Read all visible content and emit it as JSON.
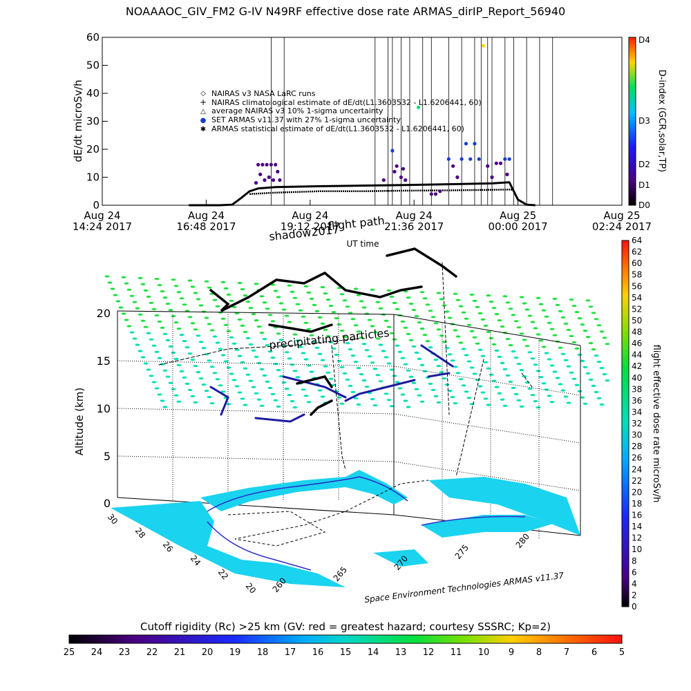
{
  "title": "NOAAAOC_GIV_FM2 G-IV    N49RF   effective dose rate ARMAS_dirIP_Report_56940",
  "colors": {
    "ocean": "#1ad3ef",
    "land_outline": "#2d2dc8",
    "top_accent": "#ff3a00",
    "grid_dot": "#00e070"
  },
  "chart_data": [
    {
      "type": "line",
      "name": "time-series",
      "ylabel": "dE/dt microSv/h",
      "xlabel": "UT time",
      "ylim": [
        0,
        60
      ],
      "yticks": [
        0,
        10,
        20,
        30,
        40,
        50,
        60
      ],
      "xticks": [
        {
          "line1": "Aug 24",
          "line2": "14:24 2017"
        },
        {
          "line1": "Aug 24",
          "line2": "16:48 2017"
        },
        {
          "line1": "Aug 24",
          "line2": "19:12 2017"
        },
        {
          "line1": "Aug 24",
          "line2": "21:36 2017"
        },
        {
          "line1": "Aug 25",
          "line2": "00:00 2017"
        },
        {
          "line1": "Aug 25",
          "line2": "02:24 2017"
        }
      ],
      "xlim_hours": [
        0,
        12
      ],
      "legend": [
        {
          "symbol": "◇",
          "label": "NAIRAS v3 NASA LaRC runs"
        },
        {
          "symbol": "+",
          "label": "NAIRAS climatological estimate of dE/dt(L1.3603532 - L1.6206441, 60)"
        },
        {
          "symbol": "△",
          "label": "average NAIRAS v3 10% 1-sigma uncertainty"
        },
        {
          "symbol": "●",
          "label": "SET ARMAS v11.37 with 27% 1-sigma uncertainty"
        },
        {
          "symbol": "✱",
          "label": "ARMAS statistical estimate of dE/dt(L1.3603532 - L1.6206441, 60)"
        }
      ],
      "series": [
        {
          "name": "ARMAS statistical estimate",
          "x": [
            2.0,
            2.7,
            3.0,
            3.2,
            3.4,
            3.6,
            4.0,
            5.0,
            6.0,
            7.0,
            8.0,
            9.0,
            9.4,
            9.6,
            9.8,
            10.0
          ],
          "y": [
            0,
            0,
            0.2,
            2.5,
            5,
            6,
            6.5,
            6.8,
            7,
            7.2,
            7.5,
            7.8,
            8.2,
            2,
            0.2,
            0
          ]
        },
        {
          "name": "NAIRAS climatological estimate",
          "x": [
            3.4,
            4.0,
            5.0,
            6.0,
            7.0,
            8.0,
            9.0,
            9.5
          ],
          "y": [
            4,
            4.5,
            5,
            5,
            5.2,
            5.3,
            5.5,
            5.6
          ]
        },
        {
          "name": "SET ARMAS v11.37",
          "x": [
            3.55,
            3.6,
            3.65,
            3.7,
            3.75,
            3.8,
            3.85,
            3.9,
            3.95,
            4.0,
            4.05,
            4.1,
            6.5,
            6.7,
            6.75,
            6.8,
            6.9,
            6.95,
            7.0,
            7.3,
            7.6,
            7.7,
            7.8,
            8.0,
            8.1,
            8.2,
            8.3,
            8.4,
            8.5,
            8.6,
            8.7,
            8.8,
            8.9,
            9.0,
            9.1,
            9.2,
            9.3,
            9.35,
            9.4
          ],
          "y": [
            8,
            14.5,
            11,
            14.5,
            9,
            14.5,
            10,
            14.5,
            9,
            14.5,
            12,
            9,
            9,
            19.5,
            12,
            14,
            10,
            13,
            9,
            35,
            4,
            4,
            5,
            16.5,
            14,
            10,
            16.5,
            22,
            16.5,
            22,
            16.5,
            57,
            14,
            10,
            15,
            15,
            16.5,
            11,
            16.5
          ]
        }
      ],
      "dindex": {
        "label": "D-index (GCR,solar,TP)",
        "ticks": [
          "D0",
          "D1",
          "D2",
          "D3",
          "D4"
        ]
      }
    },
    {
      "type": "scatter",
      "name": "3d-flight-view",
      "zlabel": "Altitude (km)",
      "zticks": [
        0,
        5,
        10,
        15,
        20
      ],
      "lat_ticks": [
        "30",
        "28",
        "26",
        "24",
        "22",
        "20"
      ],
      "lon_ticks": [
        "260",
        "265",
        "270",
        "275",
        "280"
      ],
      "annotations": [
        "flight path",
        "shadow2017",
        "precipitating particles",
        "Space Environment Technologies ARMAS v11.37"
      ],
      "dose_colorbar": {
        "label": "flight effective dose rate microSv/h",
        "ticks": [
          "0",
          "2",
          "4",
          "6",
          "8",
          "10",
          "12",
          "14",
          "16",
          "18",
          "20",
          "22",
          "24",
          "26",
          "28",
          "30",
          "32",
          "34",
          "36",
          "38",
          "40",
          "42",
          "44",
          "46",
          "48",
          "50",
          "52",
          "54",
          "56",
          "58",
          "60",
          "62",
          "64"
        ]
      },
      "rc_colorbar": {
        "label": "Cutoff rigidity (Rc) >25 km (GV: red = greatest hazard; courtesy SSSRC; Kp=2)",
        "ticks": [
          "25",
          "24",
          "23",
          "22",
          "21",
          "20",
          "19",
          "18",
          "17",
          "16",
          "15",
          "14",
          "13",
          "12",
          "11",
          "10",
          "9",
          "8",
          "7",
          "6",
          "5"
        ]
      }
    }
  ]
}
